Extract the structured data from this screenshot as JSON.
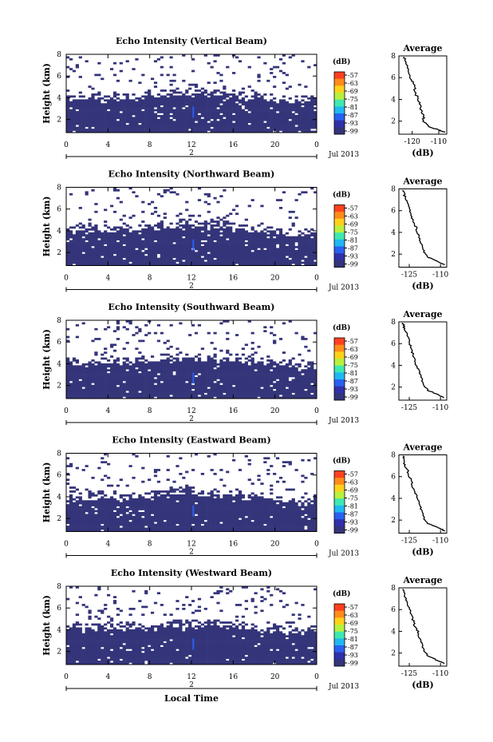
{
  "chart_data": {
    "type": "heatmap",
    "xlabel": "Local Time",
    "date_label": "Jul 2013",
    "day_label": "2",
    "x_ticks": [
      "0",
      "4",
      "8",
      "12",
      "16",
      "20",
      "0"
    ],
    "y_ticks": [
      "2",
      "4",
      "6",
      "8"
    ],
    "ylabel": "Height (km)",
    "ylim": [
      0.8,
      8.0
    ],
    "xlim": [
      0,
      24
    ],
    "colorbar": {
      "unit": "(dB)",
      "ticks": [
        "-57",
        "-63",
        "-69",
        "-75",
        "-81",
        "-87",
        "-93",
        "-99"
      ],
      "colors": [
        "#ff4020",
        "#ff8c1a",
        "#ffd21a",
        "#b8f040",
        "#40e8b0",
        "#20b8f0",
        "#2860f0",
        "#3030a8",
        "#34347a"
      ]
    },
    "panels": [
      {
        "name": "vertical",
        "title": "Echo Intensity (Vertical Beam)",
        "layer_top_km": 3.8,
        "avg": {
          "title": "Average",
          "xlabel": "(dB)",
          "xticks": [
            "-120",
            "-110"
          ],
          "xlim": [
            -125,
            -107
          ],
          "profile": [
            [
              -108,
              1.0
            ],
            [
              -110,
              1.2
            ],
            [
              -114,
              1.5
            ],
            [
              -115.5,
              2.0
            ],
            [
              -116,
              2.5
            ],
            [
              -116.5,
              3.0
            ],
            [
              -117,
              3.5
            ],
            [
              -118,
              4.0
            ],
            [
              -118.5,
              4.5
            ],
            [
              -119,
              5.0
            ],
            [
              -119.5,
              5.5
            ],
            [
              -120.5,
              6.0
            ],
            [
              -121,
              6.5
            ],
            [
              -122,
              7.0
            ],
            [
              -122.5,
              7.5
            ],
            [
              -123,
              7.9
            ]
          ]
        }
      },
      {
        "name": "northward",
        "title": "Echo Intensity (Northward Beam)",
        "layer_top_km": 3.9,
        "avg": {
          "title": "Average",
          "xlabel": "(dB)",
          "xticks": [
            "-125",
            "-110"
          ],
          "xlim": [
            -130,
            -107
          ],
          "profile": [
            [
              -108,
              1.0
            ],
            [
              -111,
              1.3
            ],
            [
              -116,
              1.7
            ],
            [
              -118,
              2.2
            ],
            [
              -119,
              2.8
            ],
            [
              -120,
              3.4
            ],
            [
              -121,
              4.0
            ],
            [
              -122,
              4.6
            ],
            [
              -123.5,
              5.2
            ],
            [
              -124.5,
              5.8
            ],
            [
              -125.5,
              6.4
            ],
            [
              -126.5,
              7.0
            ],
            [
              -127.5,
              7.5
            ],
            [
              -128,
              7.9
            ]
          ]
        }
      },
      {
        "name": "southward",
        "title": "Echo Intensity (Southward Beam)",
        "layer_top_km": 3.9,
        "avg": {
          "title": "Average",
          "xlabel": "",
          "xticks": [
            "-125",
            "-110"
          ],
          "xlim": [
            -130,
            -107
          ],
          "profile": [
            [
              -108,
              1.0
            ],
            [
              -111,
              1.3
            ],
            [
              -116,
              1.7
            ],
            [
              -118,
              2.2
            ],
            [
              -119,
              2.8
            ],
            [
              -120,
              3.4
            ],
            [
              -121.5,
              4.0
            ],
            [
              -122.5,
              4.6
            ],
            [
              -123.5,
              5.2
            ],
            [
              -124.5,
              5.8
            ],
            [
              -125.5,
              6.4
            ],
            [
              -126.5,
              7.0
            ],
            [
              -127.5,
              7.5
            ],
            [
              -128,
              7.9
            ]
          ]
        }
      },
      {
        "name": "eastward",
        "title": "Echo Intensity (Eastward Beam)",
        "layer_top_km": 3.7,
        "avg": {
          "title": "Average",
          "xlabel": "(dB)",
          "xticks": [
            "-125",
            "-110"
          ],
          "xlim": [
            -130,
            -107
          ],
          "profile": [
            [
              -108,
              1.0
            ],
            [
              -111,
              1.3
            ],
            [
              -116,
              1.7
            ],
            [
              -118,
              2.2
            ],
            [
              -119,
              2.8
            ],
            [
              -120,
              3.4
            ],
            [
              -121,
              4.0
            ],
            [
              -122.5,
              4.6
            ],
            [
              -123.5,
              5.2
            ],
            [
              -124.5,
              5.8
            ],
            [
              -125.5,
              6.4
            ],
            [
              -127,
              7.0
            ],
            [
              -127.5,
              7.5
            ],
            [
              -128,
              7.9
            ]
          ]
        }
      },
      {
        "name": "westward",
        "title": "Echo Intensity (Westward Beam)",
        "layer_top_km": 3.9,
        "avg": {
          "title": "Average",
          "xlabel": "(dB)",
          "xticks": [
            "-125",
            "-110"
          ],
          "xlim": [
            -130,
            -107
          ],
          "profile": [
            [
              -108,
              1.0
            ],
            [
              -111,
              1.3
            ],
            [
              -116,
              1.7
            ],
            [
              -118,
              2.2
            ],
            [
              -119,
              2.8
            ],
            [
              -120,
              3.4
            ],
            [
              -121,
              4.0
            ],
            [
              -122.5,
              4.6
            ],
            [
              -123.5,
              5.2
            ],
            [
              -124.5,
              5.8
            ],
            [
              -125.5,
              6.4
            ],
            [
              -126.5,
              7.0
            ],
            [
              -127.5,
              7.5
            ],
            [
              -128,
              7.9
            ]
          ]
        }
      }
    ]
  }
}
